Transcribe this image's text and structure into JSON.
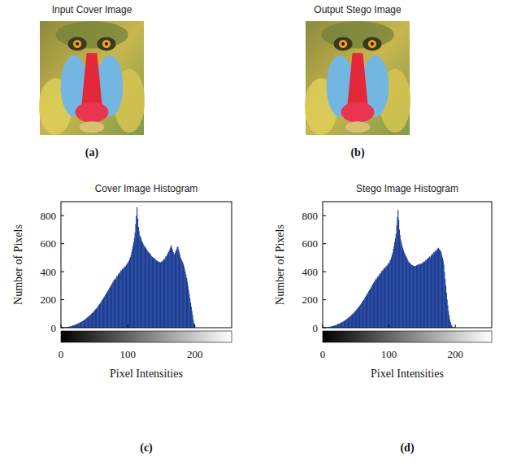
{
  "images": [
    {
      "title": "Input Cover Image",
      "label": "(a)"
    },
    {
      "title": "Output Stego Image",
      "label": "(b)"
    }
  ],
  "chart_data": [
    {
      "type": "histogram",
      "title": "Cover Image Histogram",
      "x_label": "Pixel Intensities",
      "y_label": "Number of Pixels",
      "annotations": [
        "(c)"
      ],
      "color": "#1b3d96",
      "xlim": [
        0,
        255
      ],
      "xticks": [
        0,
        100,
        200
      ],
      "ylim": [
        0,
        900
      ],
      "yticks": [
        0,
        200,
        400,
        600,
        800
      ],
      "bins": [
        0,
        1,
        2,
        3,
        4,
        5,
        6,
        7,
        8,
        9,
        10,
        11,
        12,
        13,
        14,
        15,
        16,
        17,
        18,
        19,
        20,
        21,
        22,
        23,
        24,
        25,
        26,
        27,
        28,
        29,
        30,
        31,
        32,
        33,
        34,
        35,
        36,
        37,
        38,
        39,
        40,
        41,
        42,
        43,
        44,
        45,
        46,
        47,
        48,
        49,
        50,
        51,
        52,
        53,
        54,
        55,
        56,
        57,
        58,
        59,
        60,
        61,
        62,
        63,
        64,
        65,
        66,
        67,
        68,
        69,
        70,
        71,
        72,
        73,
        74,
        75,
        76,
        77,
        78,
        79,
        80,
        81,
        82,
        83,
        84,
        85,
        86,
        87,
        88,
        89,
        90,
        91,
        92,
        93,
        94,
        95,
        96,
        97,
        98,
        99,
        100,
        101,
        102,
        103,
        104,
        105,
        106,
        107,
        108,
        109,
        110,
        111,
        112,
        113,
        114,
        115,
        116,
        117,
        118,
        119,
        120,
        121,
        122,
        123,
        124,
        125,
        126,
        127,
        128,
        129,
        130,
        131,
        132,
        133,
        134,
        135,
        136,
        137,
        138,
        139,
        140,
        141,
        142,
        143,
        144,
        145,
        146,
        147,
        148,
        149,
        150,
        151,
        152,
        153,
        154,
        155,
        156,
        157,
        158,
        159,
        160,
        161,
        162,
        163,
        164,
        165,
        166,
        167,
        168,
        169,
        170,
        171,
        172,
        173,
        174,
        175,
        176,
        177,
        178,
        179,
        180,
        181,
        182,
        183,
        184,
        185,
        186,
        187,
        188,
        189,
        190,
        191,
        192,
        193,
        194,
        195,
        196,
        197,
        198,
        199,
        200
      ],
      "values": [
        0,
        1,
        1,
        2,
        2,
        3,
        3,
        4,
        5,
        5,
        6,
        7,
        8,
        9,
        10,
        12,
        13,
        15,
        16,
        18,
        20,
        22,
        24,
        26,
        28,
        30,
        33,
        35,
        38,
        40,
        43,
        46,
        48,
        52,
        55,
        58,
        62,
        66,
        70,
        74,
        78,
        82,
        86,
        90,
        95,
        100,
        104,
        109,
        114,
        120,
        125,
        131,
        136,
        142,
        148,
        155,
        161,
        168,
        175,
        182,
        190,
        197,
        205,
        212,
        220,
        228,
        236,
        244,
        252,
        260,
        268,
        276,
        284,
        293,
        301,
        310,
        318,
        326,
        334,
        342,
        350,
        345,
        360,
        372,
        365,
        380,
        390,
        385,
        400,
        410,
        405,
        418,
        425,
        420,
        432,
        440,
        435,
        448,
        455,
        462,
        470,
        478,
        490,
        505,
        520,
        540,
        560,
        585,
        610,
        640,
        680,
        740,
        800,
        860,
        780,
        720,
        690,
        660,
        650,
        640,
        620,
        610,
        600,
        590,
        585,
        575,
        570,
        560,
        555,
        545,
        540,
        535,
        530,
        525,
        515,
        510,
        505,
        500,
        498,
        495,
        490,
        485,
        480,
        478,
        475,
        472,
        470,
        468,
        465,
        470,
        475,
        470,
        480,
        490,
        485,
        500,
        510,
        505,
        520,
        530,
        540,
        550,
        560,
        575,
        590,
        570,
        555,
        540,
        530,
        520,
        535,
        550,
        560,
        575,
        580,
        560,
        540,
        520,
        500,
        490,
        480,
        470,
        455,
        440,
        420,
        400,
        380,
        355,
        330,
        300,
        270,
        240,
        210,
        180,
        150,
        120,
        90,
        60,
        35,
        15
      ]
    },
    {
      "type": "histogram",
      "title": "Stego Image Histogram",
      "x_label": "Pixel Intensities",
      "y_label": "Number of Pixels",
      "annotations": [
        "(d)"
      ],
      "color": "#1b3d96",
      "xlim": [
        0,
        255
      ],
      "xticks": [
        0,
        100,
        200
      ],
      "ylim": [
        0,
        900
      ],
      "yticks": [
        0,
        200,
        400,
        600,
        800
      ],
      "bins": [
        0,
        1,
        2,
        3,
        4,
        5,
        6,
        7,
        8,
        9,
        10,
        11,
        12,
        13,
        14,
        15,
        16,
        17,
        18,
        19,
        20,
        21,
        22,
        23,
        24,
        25,
        26,
        27,
        28,
        29,
        30,
        31,
        32,
        33,
        34,
        35,
        36,
        37,
        38,
        39,
        40,
        41,
        42,
        43,
        44,
        45,
        46,
        47,
        48,
        49,
        50,
        51,
        52,
        53,
        54,
        55,
        56,
        57,
        58,
        59,
        60,
        61,
        62,
        63,
        64,
        65,
        66,
        67,
        68,
        69,
        70,
        71,
        72,
        73,
        74,
        75,
        76,
        77,
        78,
        79,
        80,
        81,
        82,
        83,
        84,
        85,
        86,
        87,
        88,
        89,
        90,
        91,
        92,
        93,
        94,
        95,
        96,
        97,
        98,
        99,
        100,
        101,
        102,
        103,
        104,
        105,
        106,
        107,
        108,
        109,
        110,
        111,
        112,
        113,
        114,
        115,
        116,
        117,
        118,
        119,
        120,
        121,
        122,
        123,
        124,
        125,
        126,
        127,
        128,
        129,
        130,
        131,
        132,
        133,
        134,
        135,
        136,
        137,
        138,
        139,
        140,
        141,
        142,
        143,
        144,
        145,
        146,
        147,
        148,
        149,
        150,
        151,
        152,
        153,
        154,
        155,
        156,
        157,
        158,
        159,
        160,
        161,
        162,
        163,
        164,
        165,
        166,
        167,
        168,
        169,
        170,
        171,
        172,
        173,
        174,
        175,
        176,
        177,
        178,
        179,
        180,
        181,
        182,
        183,
        184,
        185,
        186,
        187,
        188,
        189,
        190,
        191,
        192,
        193,
        194,
        195,
        196,
        197,
        198,
        199,
        200
      ],
      "values": [
        0,
        1,
        1,
        2,
        3,
        3,
        4,
        4,
        5,
        6,
        6,
        7,
        8,
        9,
        11,
        12,
        14,
        15,
        17,
        18,
        20,
        22,
        24,
        27,
        29,
        31,
        33,
        36,
        38,
        41,
        44,
        46,
        49,
        52,
        56,
        59,
        63,
        66,
        70,
        75,
        79,
        83,
        87,
        91,
        96,
        100,
        105,
        110,
        115,
        121,
        126,
        132,
        137,
        143,
        149,
        156,
        162,
        169,
        176,
        183,
        191,
        198,
        206,
        213,
        221,
        229,
        237,
        245,
        253,
        261,
        269,
        277,
        285,
        294,
        302,
        311,
        319,
        327,
        335,
        343,
        352,
        346,
        362,
        370,
        367,
        382,
        388,
        387,
        402,
        408,
        407,
        416,
        427,
        422,
        430,
        442,
        437,
        446,
        457,
        460,
        468,
        480,
        488,
        503,
        522,
        538,
        562,
        583,
        612,
        638,
        670,
        730,
        790,
        840,
        770,
        700,
        660,
        630,
        610,
        590,
        570,
        555,
        540,
        530,
        520,
        510,
        500,
        490,
        480,
        470,
        465,
        460,
        455,
        450,
        448,
        445,
        442,
        440,
        438,
        440,
        442,
        445,
        448,
        450,
        455,
        452,
        450,
        455,
        460,
        458,
        462,
        468,
        472,
        470,
        478,
        485,
        480,
        490,
        495,
        500,
        505,
        510,
        500,
        515,
        525,
        520,
        530,
        540,
        535,
        550,
        545,
        555,
        560,
        565,
        570,
        560,
        555,
        550,
        540,
        520,
        500,
        480,
        450,
        400,
        350,
        300,
        250,
        200,
        160,
        120,
        90,
        60,
        40,
        25,
        15,
        8,
        4,
        2,
        1,
        0
      ]
    }
  ]
}
